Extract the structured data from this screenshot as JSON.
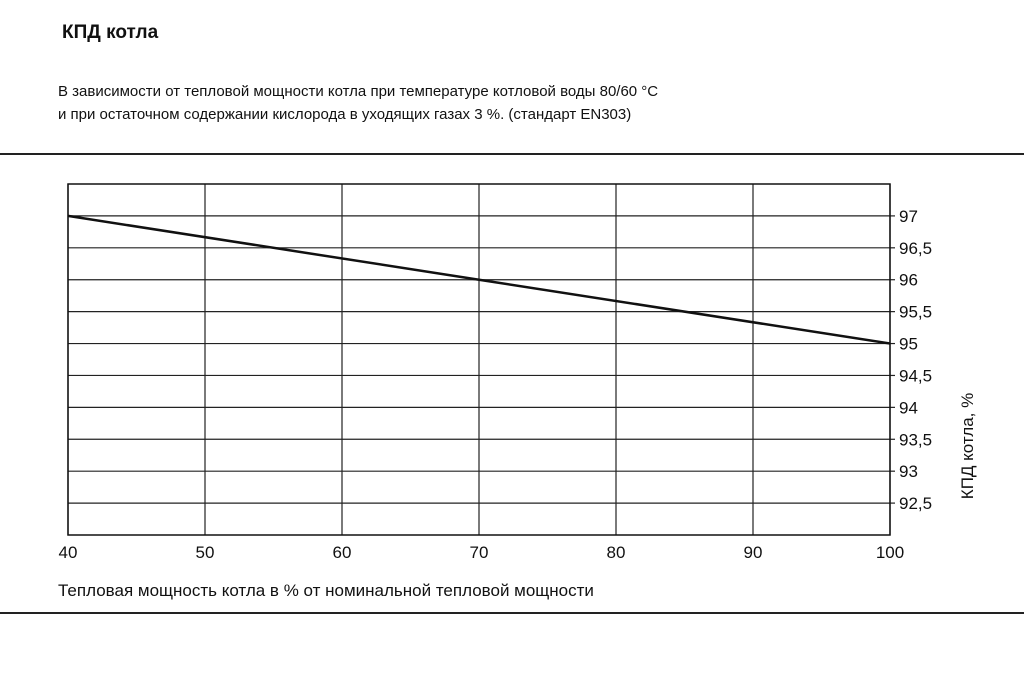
{
  "header": {
    "title": "КПД котла",
    "subtitle_line1": "В зависимости от тепловой мощности котла при температуре котловой воды 80/60 °C",
    "subtitle_line2": "и при остаточном содержании кислорода в уходящих газах 3 %. (стандарт EN303)"
  },
  "chart_data": {
    "type": "line",
    "xlabel": "Тепловая мощность котла в % от номинальной тепловой мощности",
    "ylabel": "КПД котла, %",
    "xlim": [
      40,
      100
    ],
    "ylim": [
      92,
      97.5
    ],
    "x_ticks": [
      40,
      50,
      60,
      70,
      80,
      90,
      100
    ],
    "x_tick_labels": [
      "40",
      "50",
      "60",
      "70",
      "80",
      "90",
      "100"
    ],
    "y_ticks": [
      92.5,
      93,
      93.5,
      94,
      94.5,
      95,
      95.5,
      96,
      96.5,
      97
    ],
    "y_tick_labels": [
      "92,5",
      "93",
      "93,5",
      "94",
      "94,5",
      "95",
      "95,5",
      "96",
      "96,5",
      "97"
    ],
    "grid": true,
    "y_axis_side": "right",
    "line_color": "#111111",
    "series": [
      {
        "x": [
          40,
          70,
          100
        ],
        "y": [
          97,
          96,
          95
        ]
      }
    ]
  }
}
